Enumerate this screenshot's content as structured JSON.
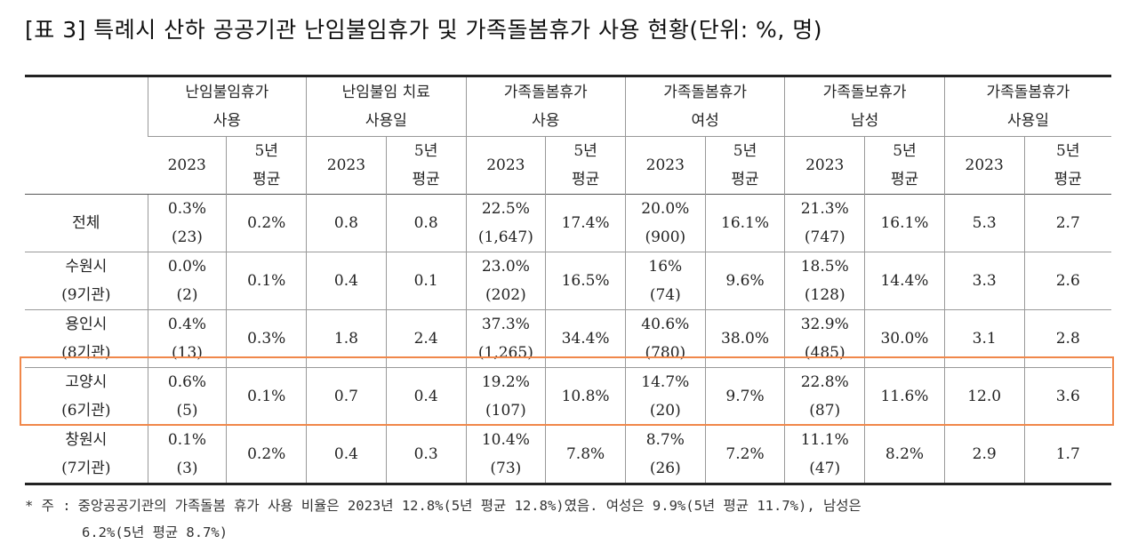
{
  "title": "[표 3] 특례시 산하 공공기관 난임불임휴가 및 가족돌봄휴가 사용 현황(단위: %, 명)",
  "columns": [
    {
      "label1": "난임불임휴가",
      "label2": "사용"
    },
    {
      "label1": "난임불임 치료",
      "label2": "사용일"
    },
    {
      "label1": "가족돌봄휴가",
      "label2": "사용"
    },
    {
      "label1": "가족돌봄휴가",
      "label2": "여성"
    },
    {
      "label1": "가족돌보휴가",
      "label2": "남성"
    },
    {
      "label1": "가족돌봄휴가",
      "label2": "사용일"
    }
  ],
  "sub": {
    "year": "2023",
    "avg1": "5년",
    "avg2": "평균"
  },
  "rows": [
    {
      "name1": "전체",
      "name2": "",
      "cells": [
        {
          "a": "0.3%",
          "b": "(23)"
        },
        {
          "a": "0.2%"
        },
        {
          "a": "0.8"
        },
        {
          "a": "0.8"
        },
        {
          "a": "22.5%",
          "b": "(1,647)"
        },
        {
          "a": "17.4%"
        },
        {
          "a": "20.0%",
          "b": "(900)"
        },
        {
          "a": "16.1%"
        },
        {
          "a": "21.3%",
          "b": "(747)"
        },
        {
          "a": "16.1%"
        },
        {
          "a": "5.3"
        },
        {
          "a": "2.7"
        }
      ]
    },
    {
      "name1": "수원시",
      "name2": "(9기관)",
      "cells": [
        {
          "a": "0.0%",
          "b": "(2)"
        },
        {
          "a": "0.1%"
        },
        {
          "a": "0.4"
        },
        {
          "a": "0.1"
        },
        {
          "a": "23.0%",
          "b": "(202)"
        },
        {
          "a": "16.5%"
        },
        {
          "a": "16%",
          "b": "(74)"
        },
        {
          "a": "9.6%"
        },
        {
          "a": "18.5%",
          "b": "(128)"
        },
        {
          "a": "14.4%"
        },
        {
          "a": "3.3"
        },
        {
          "a": "2.6"
        }
      ]
    },
    {
      "name1": "용인시",
      "name2": "(8기관)",
      "cells": [
        {
          "a": "0.4%",
          "b": "(13)"
        },
        {
          "a": "0.3%"
        },
        {
          "a": "1.8"
        },
        {
          "a": "2.4"
        },
        {
          "a": "37.3%",
          "b": "(1,265)"
        },
        {
          "a": "34.4%"
        },
        {
          "a": "40.6%",
          "b": "(780)"
        },
        {
          "a": "38.0%"
        },
        {
          "a": "32.9%",
          "b": "(485)"
        },
        {
          "a": "30.0%"
        },
        {
          "a": "3.1"
        },
        {
          "a": "2.8"
        }
      ]
    },
    {
      "name1": "고양시",
      "name2": "(6기관)",
      "cells": [
        {
          "a": "0.6%",
          "b": "(5)"
        },
        {
          "a": "0.1%"
        },
        {
          "a": "0.7"
        },
        {
          "a": "0.4"
        },
        {
          "a": "19.2%",
          "b": "(107)"
        },
        {
          "a": "10.8%"
        },
        {
          "a": "14.7%",
          "b": "(20)"
        },
        {
          "a": "9.7%"
        },
        {
          "a": "22.8%",
          "b": "(87)"
        },
        {
          "a": "11.6%"
        },
        {
          "a": "12.0"
        },
        {
          "a": "3.6"
        }
      ]
    },
    {
      "name1": "창원시",
      "name2": "(7기관)",
      "cells": [
        {
          "a": "0.1%",
          "b": "(3)"
        },
        {
          "a": "0.2%"
        },
        {
          "a": "0.4"
        },
        {
          "a": "0.3"
        },
        {
          "a": "10.4%",
          "b": "(73)"
        },
        {
          "a": "7.8%"
        },
        {
          "a": "8.7%",
          "b": "(26)"
        },
        {
          "a": "7.2%"
        },
        {
          "a": "11.1%",
          "b": "(47)"
        },
        {
          "a": "8.2%"
        },
        {
          "a": "2.9"
        },
        {
          "a": "1.7"
        }
      ]
    }
  ],
  "note": {
    "mark": "* 주 :",
    "line1": "중앙공공기관의 가족돌봄 휴가 사용 비율은 2023년 12.8%(5년 평균 12.8%)였음. 여성은 9.9%(5년 평균 11.7%), 남성은",
    "line2": "6.2%(5년 평균 8.7%)"
  },
  "highlight_color": "#f0874a"
}
